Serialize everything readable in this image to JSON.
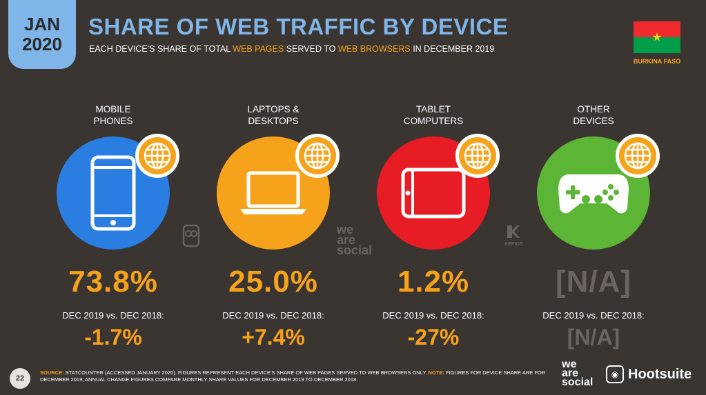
{
  "badge": {
    "month": "JAN",
    "year": "2020"
  },
  "title": "SHARE OF WEB TRAFFIC BY DEVICE",
  "subtitle": {
    "part1": "EACH DEVICE'S SHARE OF TOTAL ",
    "hl1": "WEB PAGES",
    "part2": " SERVED TO ",
    "hl2": "WEB BROWSERS",
    "part3": " IN DECEMBER 2019"
  },
  "country": "BURKINA FASO",
  "colors": {
    "mobile": "#2a7de1",
    "laptop": "#f7a21b",
    "tablet": "#e81c24",
    "other": "#5db535",
    "na": "#6b6461"
  },
  "devices": [
    {
      "label_line1": "MOBILE",
      "label_line2": "PHONES",
      "share": "73.8%",
      "change_label": "DEC 2019 vs. DEC 2018:",
      "change": "-1.7%",
      "icon": "mobile-phone-icon"
    },
    {
      "label_line1": "LAPTOPS &",
      "label_line2": "DESKTOPS",
      "share": "25.0%",
      "change_label": "DEC 2019 vs. DEC 2018:",
      "change": "+7.4%",
      "icon": "laptop-icon"
    },
    {
      "label_line1": "TABLET",
      "label_line2": "COMPUTERS",
      "share": "1.2%",
      "change_label": "DEC 2019 vs. DEC 2018:",
      "change": "-27%",
      "icon": "tablet-icon"
    },
    {
      "label_line1": "OTHER",
      "label_line2": "DEVICES",
      "share": "[N/A]",
      "change_label": "DEC 2019 vs. DEC 2018:",
      "change": "[N/A]",
      "icon": "gamepad-icon"
    }
  ],
  "watermarks": {
    "was1": "we",
    "was2": "are",
    "was3": "social",
    "kepios": "KEPIOS"
  },
  "footer": {
    "page": "22",
    "source_key": "SOURCE:",
    "source_text": " STATCOUNTER (ACCESSED JANUARY 2020). FIGURES REPRESENT EACH DEVICE'S SHARE OF WEB PAGES SERVED TO WEB BROWSERS ONLY. ",
    "note_key": "NOTE:",
    "note_text": " FIGURES FOR DEVICE SHARE ARE FOR DECEMBER 2019; ANNUAL CHANGE FIGURES COMPARE MONTHLY SHARE VALUES FOR DECEMBER 2019 TO DECEMBER 2018."
  },
  "brands": {
    "was1": "we",
    "was2": "are",
    "was3": "social",
    "hootsuite": "Hootsuite"
  }
}
